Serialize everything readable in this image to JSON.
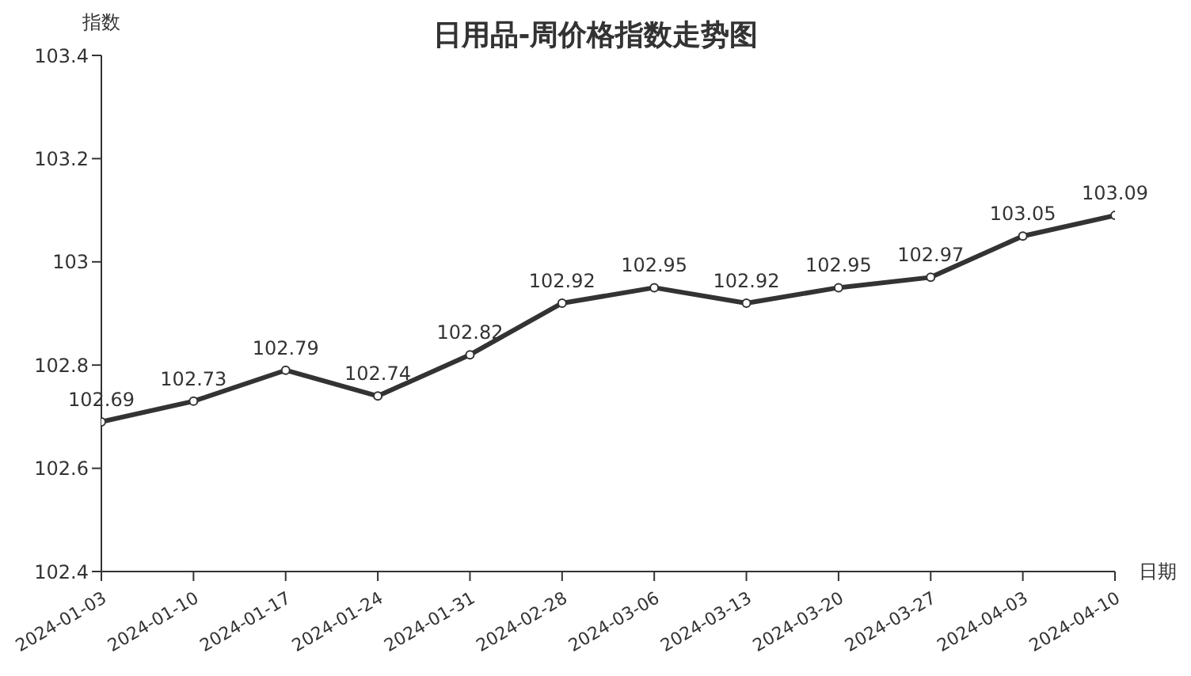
{
  "chart_data": {
    "type": "line",
    "title": "日用品-周价格指数走势图",
    "xlabel": "日期",
    "ylabel": "指数",
    "categories": [
      "2024-01-03",
      "2024-01-10",
      "2024-01-17",
      "2024-01-24",
      "2024-01-31",
      "2024-02-28",
      "2024-03-06",
      "2024-03-13",
      "2024-03-20",
      "2024-03-27",
      "2024-04-03",
      "2024-04-10"
    ],
    "series": [
      {
        "color": "#333333",
        "values": [
          102.69,
          102.73,
          102.79,
          102.74,
          102.82,
          102.92,
          102.95,
          102.92,
          102.95,
          102.97,
          103.05,
          103.09
        ]
      }
    ],
    "ylim": [
      102.4,
      103.4
    ],
    "yticks": [
      102.4,
      102.6,
      102.8,
      103,
      103.2,
      103.4
    ],
    "grid": false,
    "legend": false,
    "marker": "circle",
    "line_style": "solid",
    "data_labels": true
  }
}
